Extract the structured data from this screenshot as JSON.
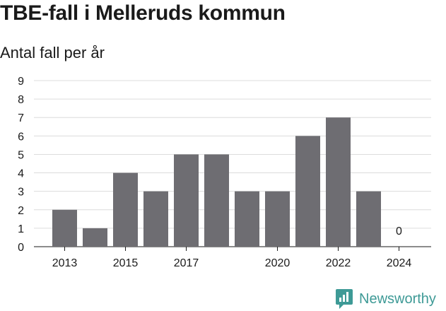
{
  "header": {
    "title": "TBE-fall i Melleruds kommun",
    "subtitle": "Antal fall per år"
  },
  "brand": {
    "name": "Newsworthy",
    "logo_icon": "newsworthy-logo-icon",
    "color": "#3e9a96"
  },
  "colors": {
    "bar": "#6e6d72",
    "grid": "#dcdcdc",
    "axis": "#1a1a1a"
  },
  "chart_data": {
    "type": "bar",
    "categories": [
      "2013",
      "2014",
      "2015",
      "2016",
      "2017",
      "2018",
      "2019",
      "2020",
      "2021",
      "2022",
      "2023",
      "2024"
    ],
    "values": [
      2,
      1,
      4,
      3,
      5,
      5,
      3,
      3,
      6,
      7,
      3,
      0
    ],
    "x_tick_labels": [
      "2013",
      "2015",
      "2017",
      "2020",
      "2022",
      "2024"
    ],
    "y_ticks": [
      0,
      1,
      2,
      3,
      4,
      5,
      6,
      7,
      8,
      9
    ],
    "ylim": [
      0,
      9
    ],
    "data_labels": [
      {
        "category": "2024",
        "text": "0"
      }
    ],
    "title": "TBE-fall i Melleruds kommun",
    "ylabel": "Antal fall per år",
    "xlabel": "",
    "grid": true,
    "legend": "none"
  }
}
